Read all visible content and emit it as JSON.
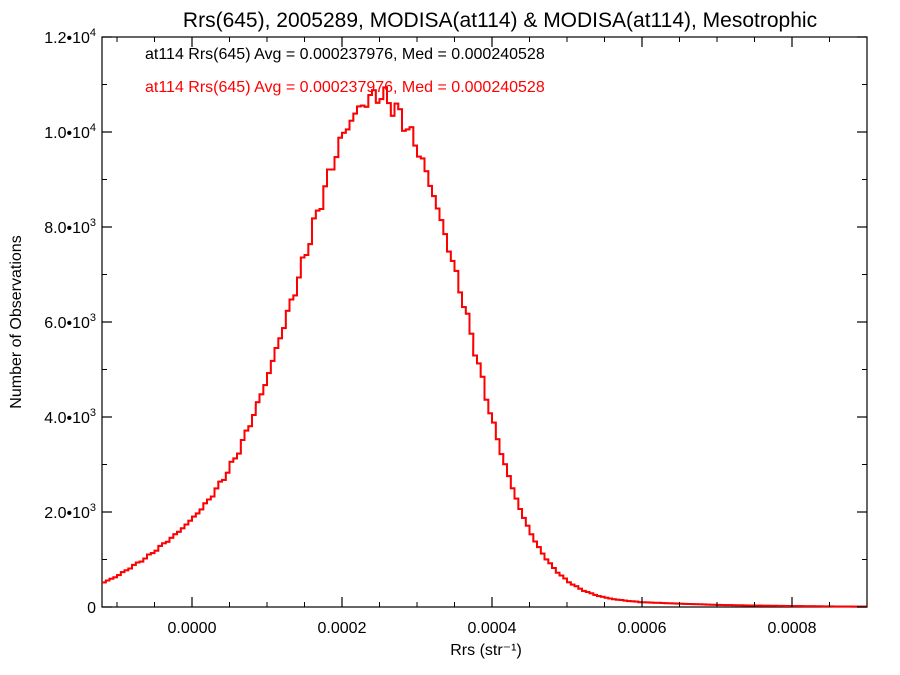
{
  "chart_data": {
    "type": "histogram",
    "title": "Rrs(645), 2005289, MODISA(at114) & MODISA(at114), Mesotrophic",
    "xlabel": "Rrs (str⁻¹)",
    "ylabel": "Number of Observations",
    "xlim": [
      -0.00012,
      0.0009
    ],
    "ylim": [
      0,
      12000
    ],
    "grid": false,
    "bin_width": 5e-06,
    "x_tick_values": [
      0.0,
      0.0002,
      0.0004,
      0.0006,
      0.0008
    ],
    "x_tick_labels": [
      "0.0000",
      "0.0002",
      "0.0004",
      "0.0006",
      "0.0008"
    ],
    "y_tick_values": [
      0,
      2000,
      4000,
      6000,
      8000,
      10000,
      12000
    ],
    "y_tick_labels": [
      {
        "mantissa": "0",
        "exp": ""
      },
      {
        "mantissa": "2.0•1",
        "exp": "3"
      },
      {
        "mantissa": "4.0•1",
        "exp": "3"
      },
      {
        "mantissa": "6.0•1",
        "exp": "3"
      },
      {
        "mantissa": "8.0•1",
        "exp": "3"
      },
      {
        "mantissa": "1.0•1",
        "exp": "4"
      },
      {
        "mantissa": "1.2•1",
        "exp": "4"
      }
    ],
    "legend": {
      "placement": "top-left",
      "entries": [
        {
          "text": "at114 Rrs(645) Avg = 0.000237976, Med = 0.000240528",
          "color": "#000000"
        },
        {
          "text": "at114 Rrs(645) Avg = 0.000237976, Med = 0.000240528",
          "color": "#ff0000"
        }
      ]
    },
    "series": [
      {
        "color": "#000000",
        "curve_points": [
          [
            -0.00012,
            500
          ],
          [
            -0.0001,
            650
          ],
          [
            -8e-05,
            850
          ],
          [
            -6e-05,
            1050
          ],
          [
            -4e-05,
            1300
          ],
          [
            -2e-05,
            1550
          ],
          [
            0.0,
            1850
          ],
          [
            2e-05,
            2200
          ],
          [
            4e-05,
            2650
          ],
          [
            6e-05,
            3200
          ],
          [
            8e-05,
            3950
          ],
          [
            0.0001,
            4800
          ],
          [
            0.00012,
            5800
          ],
          [
            0.00014,
            6800
          ],
          [
            0.00016,
            7900
          ],
          [
            0.00018,
            8950
          ],
          [
            0.0002,
            9900
          ],
          [
            0.00022,
            10450
          ],
          [
            0.00024,
            10750
          ],
          [
            0.00025,
            10780
          ],
          [
            0.00026,
            10700
          ],
          [
            0.00028,
            10300
          ],
          [
            0.0003,
            9700
          ],
          [
            0.00032,
            8800
          ],
          [
            0.00034,
            7700
          ],
          [
            0.00036,
            6550
          ],
          [
            0.00038,
            5250
          ],
          [
            0.0004,
            3950
          ],
          [
            0.00042,
            2850
          ],
          [
            0.00044,
            1950
          ],
          [
            0.00046,
            1300
          ],
          [
            0.00048,
            850
          ],
          [
            0.0005,
            550
          ],
          [
            0.00052,
            360
          ],
          [
            0.00054,
            240
          ],
          [
            0.00056,
            170
          ],
          [
            0.00058,
            130
          ],
          [
            0.0006,
            100
          ],
          [
            0.00065,
            70
          ],
          [
            0.0007,
            45
          ],
          [
            0.00075,
            30
          ],
          [
            0.0008,
            20
          ],
          [
            0.00085,
            12
          ],
          [
            0.0009,
            8
          ]
        ]
      },
      {
        "color": "#ff0000",
        "curve_points": [
          [
            -0.00012,
            500
          ],
          [
            -0.0001,
            650
          ],
          [
            -8e-05,
            850
          ],
          [
            -6e-05,
            1050
          ],
          [
            -4e-05,
            1300
          ],
          [
            -2e-05,
            1550
          ],
          [
            0.0,
            1850
          ],
          [
            2e-05,
            2200
          ],
          [
            4e-05,
            2650
          ],
          [
            6e-05,
            3200
          ],
          [
            8e-05,
            3950
          ],
          [
            0.0001,
            4800
          ],
          [
            0.00012,
            5800
          ],
          [
            0.00014,
            6800
          ],
          [
            0.00016,
            7900
          ],
          [
            0.00018,
            8950
          ],
          [
            0.0002,
            9900
          ],
          [
            0.00022,
            10450
          ],
          [
            0.00024,
            10750
          ],
          [
            0.00025,
            10780
          ],
          [
            0.00026,
            10700
          ],
          [
            0.00028,
            10300
          ],
          [
            0.0003,
            9700
          ],
          [
            0.00032,
            8800
          ],
          [
            0.00034,
            7700
          ],
          [
            0.00036,
            6550
          ],
          [
            0.00038,
            5250
          ],
          [
            0.0004,
            3950
          ],
          [
            0.00042,
            2850
          ],
          [
            0.00044,
            1950
          ],
          [
            0.00046,
            1300
          ],
          [
            0.00048,
            850
          ],
          [
            0.0005,
            550
          ],
          [
            0.00052,
            360
          ],
          [
            0.00054,
            240
          ],
          [
            0.00056,
            170
          ],
          [
            0.00058,
            130
          ],
          [
            0.0006,
            100
          ],
          [
            0.00065,
            70
          ],
          [
            0.0007,
            45
          ],
          [
            0.00075,
            30
          ],
          [
            0.0008,
            20
          ],
          [
            0.00085,
            12
          ],
          [
            0.0009,
            8
          ]
        ]
      }
    ]
  }
}
